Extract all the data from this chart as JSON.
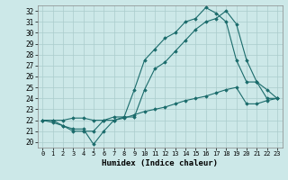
{
  "xlabel": "Humidex (Indice chaleur)",
  "background_color": "#cce8e8",
  "grid_color": "#aacccc",
  "line_color": "#1a6b6b",
  "xlim": [
    -0.5,
    23.5
  ],
  "ylim": [
    19.5,
    32.5
  ],
  "yticks": [
    20,
    21,
    22,
    23,
    24,
    25,
    26,
    27,
    28,
    29,
    30,
    31,
    32
  ],
  "xticks": [
    0,
    1,
    2,
    3,
    4,
    5,
    6,
    7,
    8,
    9,
    10,
    11,
    12,
    13,
    14,
    15,
    16,
    17,
    18,
    19,
    20,
    21,
    22,
    23
  ],
  "line1": [
    22.0,
    21.8,
    21.5,
    21.2,
    21.2,
    19.8,
    21.0,
    22.0,
    22.3,
    24.8,
    27.5,
    28.5,
    29.5,
    30.0,
    31.0,
    31.3,
    32.3,
    31.8,
    31.0,
    27.5,
    25.5,
    25.5,
    24.0,
    24.0
  ],
  "line2": [
    22.0,
    22.0,
    21.5,
    21.0,
    21.0,
    21.0,
    22.0,
    22.3,
    22.3,
    22.3,
    24.8,
    26.7,
    27.3,
    28.3,
    29.3,
    30.3,
    31.0,
    31.3,
    32.0,
    30.8,
    27.5,
    25.5,
    24.8,
    24.0
  ],
  "line3": [
    22.0,
    22.0,
    22.0,
    22.2,
    22.2,
    22.0,
    22.0,
    22.0,
    22.2,
    22.5,
    22.8,
    23.0,
    23.2,
    23.5,
    23.8,
    24.0,
    24.2,
    24.5,
    24.8,
    25.0,
    23.5,
    23.5,
    23.8,
    24.0
  ]
}
